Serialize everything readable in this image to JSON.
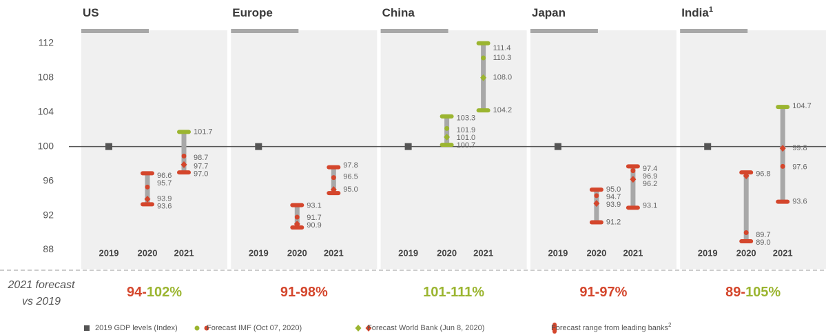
{
  "chart_data": {
    "type": "range",
    "ylim": [
      86,
      113.5
    ],
    "yticks": [
      88,
      92,
      96,
      100,
      104,
      108,
      112
    ],
    "baseline": 100,
    "categories": [
      "2019",
      "2020",
      "2021"
    ],
    "colors": {
      "up": "#9bb530",
      "down": "#d4462c",
      "bar": "#a8a8a8",
      "base": "#555555"
    },
    "side_label": [
      "2021 forecast",
      "vs 2019"
    ],
    "panels": [
      {
        "title": "US",
        "base": 100,
        "columns": [
          {
            "low": 93.3,
            "high": 96.9,
            "imf": 95.3,
            "wb": 93.9,
            "labels": [
              96.6,
              95.7,
              93.9,
              93.6
            ]
          },
          {
            "low": 97.0,
            "high": 101.7,
            "imf": 98.9,
            "wb": 97.9,
            "labels": [
              101.7,
              98.7,
              97.7,
              {
                "value": 97,
                "label": "97.0"
              }
            ]
          }
        ],
        "summary": [
          {
            "text": "94-",
            "color": "#d4462c"
          },
          {
            "text": "102%",
            "color": "#9bb530"
          }
        ]
      },
      {
        "title": "Europe",
        "base": 100,
        "columns": [
          {
            "low": 90.6,
            "high": 93.2,
            "imf": 91.8,
            "wb": 91.0,
            "labels": [
              93.1,
              91.7,
              90.9
            ]
          },
          {
            "low": 94.6,
            "high": 97.6,
            "imf": 96.4,
            "wb": 95.0,
            "labels": [
              97.8,
              96.5,
              {
                "value": 95,
                "label": "95.0"
              }
            ]
          }
        ],
        "summary": [
          {
            "text": "91-98%",
            "color": "#d4462c"
          }
        ]
      },
      {
        "title": "China",
        "base": 100,
        "columns": [
          {
            "low": 100.2,
            "high": 103.5,
            "imf": 102.1,
            "wb": 101.1,
            "labels": [
              103.3,
              101.9,
              {
                "value": 101,
                "label": "101.0"
              },
              100.7
            ]
          },
          {
            "low": 104.2,
            "high": 112.0,
            "imf": 110.3,
            "wb": 108.0,
            "labels": [
              111.4,
              110.3,
              {
                "value": 108,
                "label": "108.0"
              },
              104.2
            ]
          }
        ],
        "summary": [
          {
            "text": "101-111%",
            "color": "#9bb530"
          }
        ]
      },
      {
        "title": "Japan",
        "base": 100,
        "columns": [
          {
            "low": 91.2,
            "high": 95.0,
            "imf": 94.3,
            "wb": 93.4,
            "labels": [
              {
                "value": 95,
                "label": "95.0"
              },
              94.7,
              93.9,
              91.2
            ]
          },
          {
            "low": 92.9,
            "high": 97.7,
            "imf": 97.2,
            "wb": 96.2,
            "labels": [
              97.4,
              96.9,
              96.2,
              93.1
            ]
          }
        ],
        "summary": [
          {
            "text": "91-97%",
            "color": "#d4462c"
          }
        ]
      },
      {
        "title": "India",
        "title_sup": "1",
        "base": 100,
        "columns": [
          {
            "low": 89.0,
            "high": 97.0,
            "imf": 90.0,
            "wb": 96.6,
            "labels": [
              96.8,
              89.7,
              {
                "value": 89,
                "label": "89.0"
              }
            ]
          },
          {
            "low": 93.6,
            "high": 104.6,
            "imf": 97.7,
            "wb": 99.8,
            "labels": [
              104.7,
              99.8,
              97.6,
              93.6
            ]
          }
        ],
        "summary": [
          {
            "text": "89-",
            "color": "#d4462c"
          },
          {
            "text": "105%",
            "color": "#9bb530"
          }
        ]
      }
    ],
    "legend": [
      {
        "text": "2019 GDP levels (Index)"
      },
      {
        "text": "Forecast IMF (Oct 07, 2020)"
      },
      {
        "text": "Forecast World Bank (Jun 8, 2020)"
      },
      {
        "text": "Forecast range from leading banks",
        "sup": "2"
      }
    ]
  }
}
